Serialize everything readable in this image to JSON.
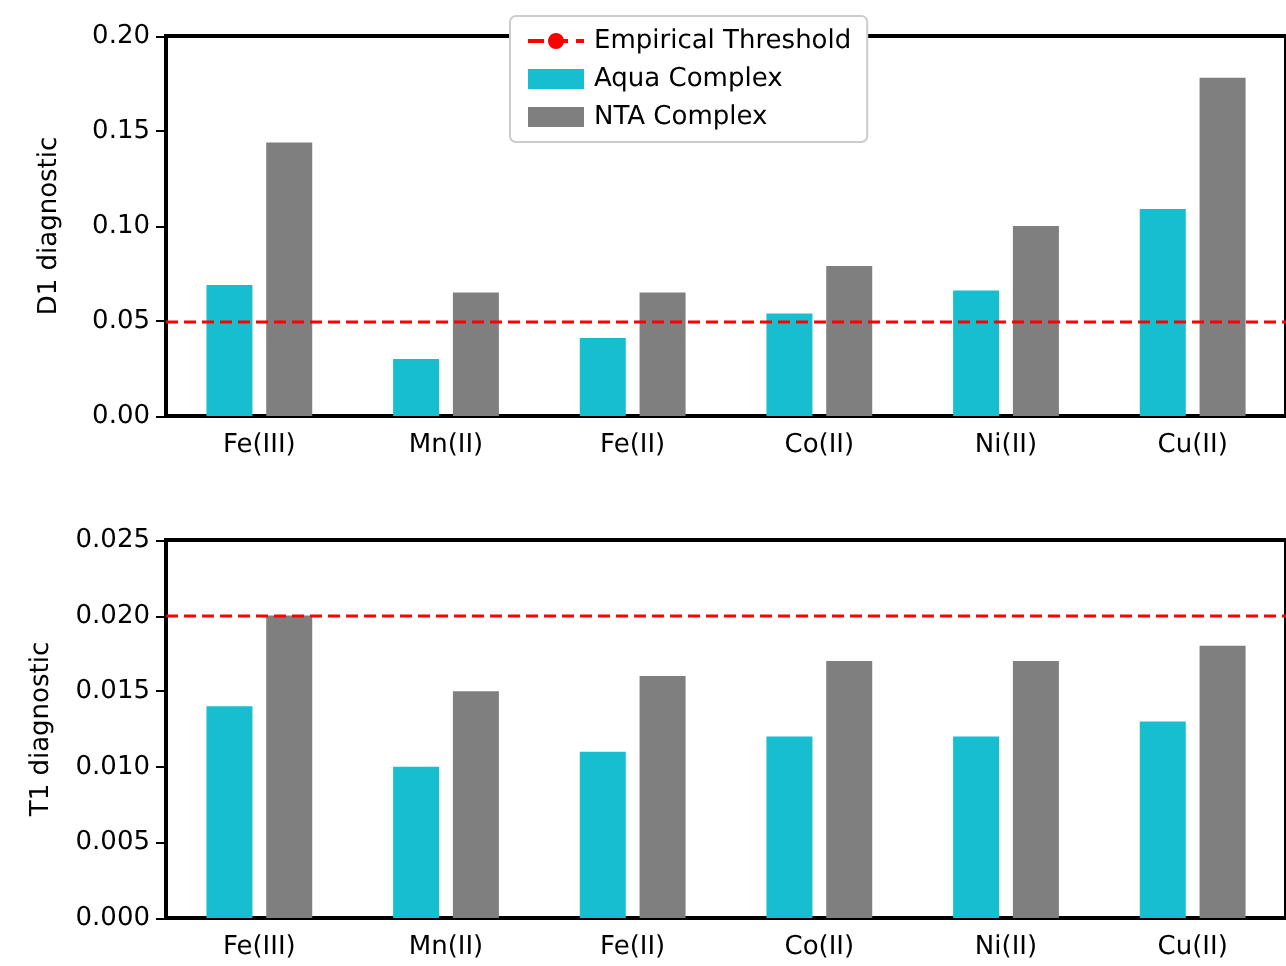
{
  "chart_data": [
    {
      "type": "bar",
      "ylabel": "D1 diagnostic",
      "categories": [
        "Fe(III)",
        "Mn(II)",
        "Fe(II)",
        "Co(II)",
        "Ni(II)",
        "Cu(II)"
      ],
      "series": [
        {
          "name": "Aqua Complex",
          "color": "#17becf",
          "values": [
            0.069,
            0.03,
            0.041,
            0.054,
            0.066,
            0.109
          ]
        },
        {
          "name": "NTA Complex",
          "color": "#7f7f7f",
          "values": [
            0.144,
            0.065,
            0.065,
            0.079,
            0.1,
            0.178
          ]
        }
      ],
      "ylim": [
        0,
        0.2
      ],
      "yticks": [
        {
          "value": 0,
          "label": "0.00"
        },
        {
          "value": 0.05,
          "label": "0.05"
        },
        {
          "value": 0.1,
          "label": "0.10"
        },
        {
          "value": 0.15,
          "label": "0.15"
        },
        {
          "value": 0.2,
          "label": "0.20"
        }
      ],
      "ref_lines": [
        {
          "axis": "y",
          "value": 0.05,
          "label": "Empirical Threshold",
          "color": "#ff0000",
          "line_style": "dashed"
        }
      ],
      "legend": "top",
      "grid": false
    },
    {
      "type": "bar",
      "ylabel": "T1 diagnostic",
      "categories": [
        "Fe(III)",
        "Mn(II)",
        "Fe(II)",
        "Co(II)",
        "Ni(II)",
        "Cu(II)"
      ],
      "series": [
        {
          "color": "#17becf",
          "values": [
            0.014,
            0.01,
            0.011,
            0.012,
            0.012,
            0.013
          ]
        },
        {
          "color": "#7f7f7f",
          "values": [
            0.02,
            0.015,
            0.016,
            0.017,
            0.017,
            0.018
          ]
        }
      ],
      "ylim": [
        0,
        0.025
      ],
      "yticks": [
        {
          "value": 0,
          "label": "0.000"
        },
        {
          "value": 0.005,
          "label": "0.005"
        },
        {
          "value": 0.01,
          "label": "0.010"
        },
        {
          "value": 0.015,
          "label": "0.015"
        },
        {
          "value": 0.02,
          "label": "0.020"
        },
        {
          "value": 0.025,
          "label": "0.025"
        }
      ],
      "ref_lines": [
        {
          "axis": "y",
          "value": 0.02,
          "color": "#ff0000",
          "line_style": "dashed"
        }
      ],
      "legend": false,
      "grid": false
    }
  ]
}
